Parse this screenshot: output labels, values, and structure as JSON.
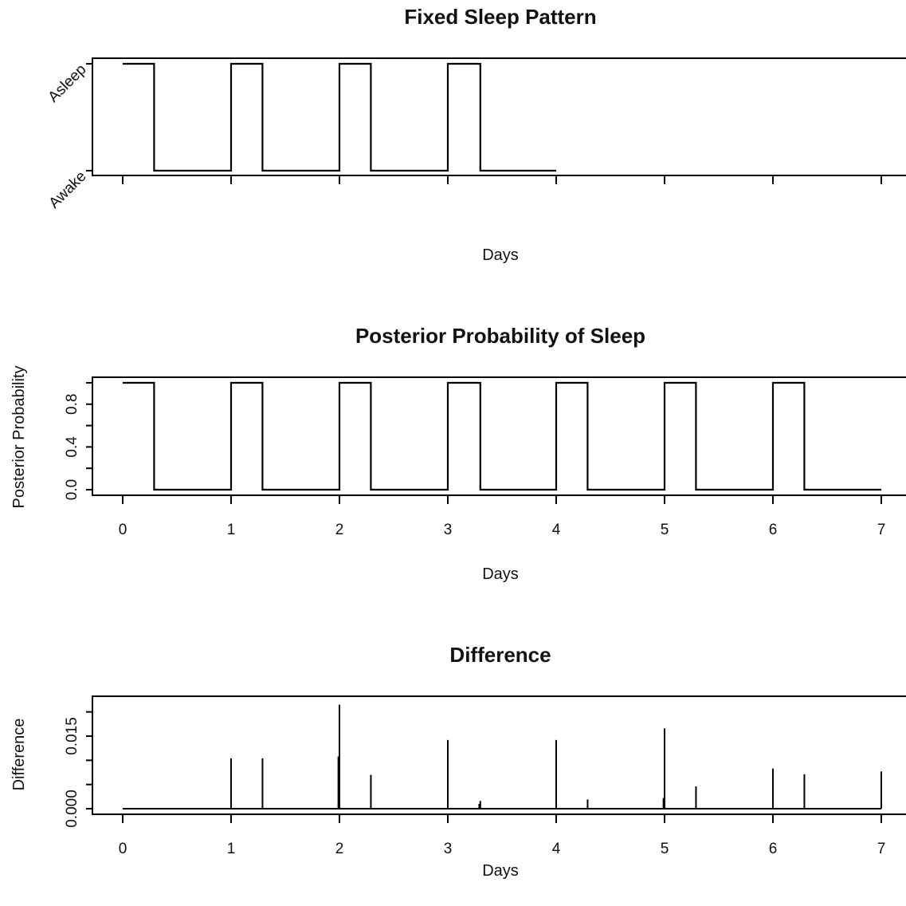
{
  "chart_data": [
    {
      "type": "line",
      "title": "Fixed Sleep Pattern",
      "xlabel": "Days",
      "ylabel": "",
      "xlim": [
        0,
        7
      ],
      "x_ticks": [
        0,
        1,
        2,
        3,
        4,
        5,
        6,
        7
      ],
      "x_tick_labels_shown": false,
      "y_categories": [
        "Awake",
        "Asleep"
      ],
      "y_tick_labels": [
        "Asleep",
        "Awake"
      ],
      "series": [
        {
          "x": [
            0,
            0.29,
            0.29,
            1,
            1,
            1.29,
            1.29,
            2,
            2,
            2.29,
            2.29,
            3,
            3,
            3.3,
            3.3,
            4
          ],
          "y": [
            1,
            1,
            0,
            0,
            1,
            1,
            0,
            0,
            1,
            1,
            0,
            0,
            1,
            1,
            0,
            0
          ]
        }
      ]
    },
    {
      "type": "line",
      "title": "Posterior Probability of Sleep",
      "xlabel": "Days",
      "ylabel": "Posterior Probability",
      "xlim": [
        0,
        7
      ],
      "ylim": [
        0,
        1
      ],
      "x_ticks": [
        0,
        1,
        2,
        3,
        4,
        5,
        6,
        7
      ],
      "x_tick_labels": [
        "0",
        "1",
        "2",
        "3",
        "4",
        "5",
        "6",
        "7"
      ],
      "y_ticks": [
        0,
        0.2,
        0.4,
        0.6,
        0.8,
        1.0
      ],
      "y_tick_labels": [
        "0.0",
        "0.4",
        "0.8"
      ],
      "series": [
        {
          "x": [
            0,
            0.29,
            0.29,
            1,
            1,
            1.29,
            1.29,
            2,
            2,
            2.29,
            2.29,
            3,
            3,
            3.3,
            3.3,
            4,
            4,
            4.29,
            4.29,
            5,
            5,
            5.29,
            5.29,
            6,
            6,
            6.29,
            6.29,
            7
          ],
          "y": [
            1,
            1,
            0,
            0,
            1,
            1,
            0,
            0,
            1,
            1,
            0,
            0,
            1,
            1,
            0,
            0,
            1,
            1,
            0,
            0,
            1,
            1,
            0,
            0,
            1,
            1,
            0,
            0
          ]
        }
      ]
    },
    {
      "type": "line",
      "title": "Difference",
      "xlabel": "Days",
      "ylabel": "Difference",
      "xlim": [
        0,
        7
      ],
      "ylim": [
        0,
        0.025
      ],
      "x_ticks": [
        0,
        1,
        2,
        3,
        4,
        5,
        6,
        7
      ],
      "x_tick_labels": [
        "0",
        "1",
        "2",
        "3",
        "4",
        "5",
        "6",
        "7"
      ],
      "y_ticks": [
        0,
        0.005,
        0.01,
        0.015,
        0.02
      ],
      "y_tick_labels": [
        "0.000",
        "0.015"
      ],
      "baseline": 0,
      "spikes": [
        {
          "x": 1.0,
          "y": 0.0104
        },
        {
          "x": 1.29,
          "y": 0.0104
        },
        {
          "x": 1.99,
          "y": 0.0108
        },
        {
          "x": 2.0,
          "y": 0.0215
        },
        {
          "x": 2.29,
          "y": 0.007
        },
        {
          "x": 3.0,
          "y": 0.0142
        },
        {
          "x": 3.29,
          "y": 0.001
        },
        {
          "x": 3.3,
          "y": 0.0016
        },
        {
          "x": 4.0,
          "y": 0.0142
        },
        {
          "x": 4.29,
          "y": 0.0019
        },
        {
          "x": 4.99,
          "y": 0.0022
        },
        {
          "x": 5.0,
          "y": 0.0166
        },
        {
          "x": 5.29,
          "y": 0.0046
        },
        {
          "x": 6.0,
          "y": 0.0083
        },
        {
          "x": 6.29,
          "y": 0.0071
        },
        {
          "x": 7.0,
          "y": 0.0077
        }
      ]
    }
  ]
}
